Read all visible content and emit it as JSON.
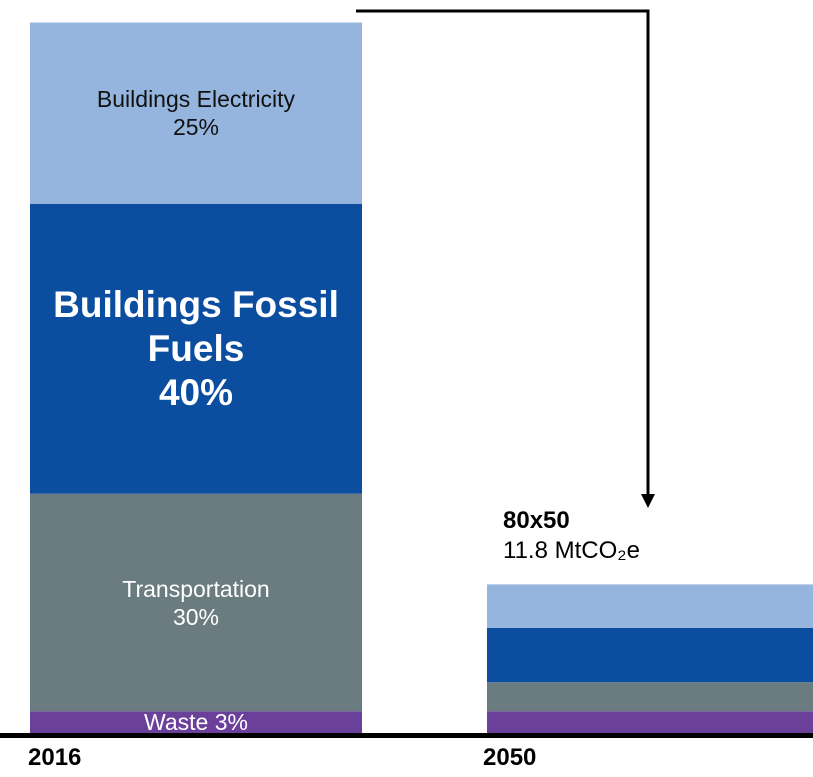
{
  "chart_data": {
    "type": "stacked-bar",
    "categories": [
      "2016",
      "2050"
    ],
    "series": [
      {
        "name": "Waste",
        "color": "#6a409a",
        "values": [
          3,
          3
        ],
        "value_labels": [
          "3%",
          null
        ]
      },
      {
        "name": "Transportation",
        "color": "#6b7c80",
        "values": [
          30,
          4
        ],
        "value_labels": [
          "30%",
          null
        ]
      },
      {
        "name": "Buildings Fossil Fuels",
        "color": "#0b4e9f",
        "values": [
          40,
          7.5
        ],
        "value_labels": [
          "40%",
          null
        ]
      },
      {
        "name": "Buildings Electricity",
        "color": "#96b5de",
        "values": [
          25,
          6
        ],
        "value_labels": [
          "25%",
          null
        ]
      }
    ],
    "ylim": [
      0,
      100
    ],
    "annotations": [
      {
        "title": "80x50",
        "text": "11.8 MtCO₂e"
      }
    ]
  }
}
